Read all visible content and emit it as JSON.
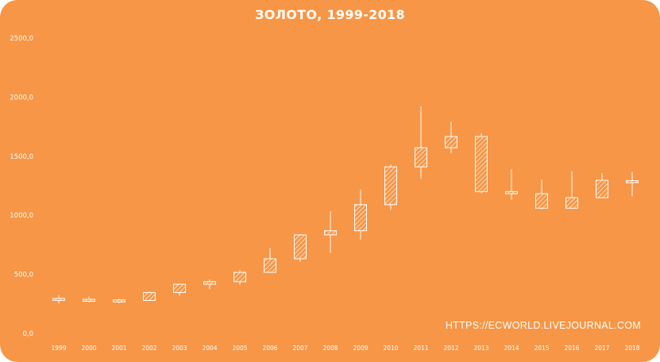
{
  "chart_data": {
    "type": "candlestick",
    "title": "ЗОЛОТО, 1999-2018",
    "xlabel": "",
    "ylabel": "",
    "ylim": [
      0,
      2500
    ],
    "y_ticks": [
      "0,0",
      "500,0",
      "1000,0",
      "1500,0",
      "2000,0",
      "2500,0"
    ],
    "y_tick_values": [
      0,
      500,
      1000,
      1500,
      2000,
      2500
    ],
    "grid": false,
    "categories": [
      "1999",
      "2000",
      "2001",
      "2002",
      "2003",
      "2004",
      "2005",
      "2006",
      "2007",
      "2008",
      "2009",
      "2010",
      "2011",
      "2012",
      "2013",
      "2014",
      "2015",
      "2016",
      "2017",
      "2018"
    ],
    "open": [
      287,
      289,
      272,
      279,
      346,
      416,
      438,
      517,
      632,
      834,
      869,
      1090,
      1410,
      1572,
      1667,
      1201,
      1183,
      1060,
      1149,
      1277
    ],
    "high": [
      326,
      315,
      293,
      354,
      416,
      456,
      537,
      725,
      841,
      1034,
      1218,
      1431,
      1921,
      1791,
      1694,
      1390,
      1302,
      1374,
      1357,
      1366
    ],
    "low": [
      253,
      265,
      255,
      277,
      320,
      375,
      412,
      525,
      605,
      682,
      795,
      1045,
      1309,
      1527,
      1185,
      1130,
      1052,
      1060,
      1150,
      1160
    ],
    "close": [
      289,
      272,
      278,
      346,
      416,
      438,
      517,
      632,
      834,
      869,
      1090,
      1410,
      1572,
      1667,
      1201,
      1183,
      1060,
      1149,
      1297,
      1292
    ]
  },
  "watermark": "HTTPS://ECWORLD.LIVEJOURNAL.COM",
  "colors": {
    "background": "#f79646",
    "foreground": "#ffffff"
  }
}
